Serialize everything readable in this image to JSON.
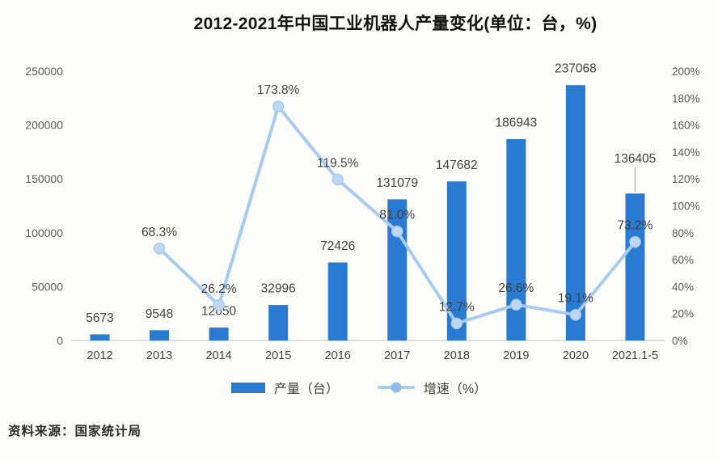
{
  "title": "2012-2021年中国工业机器人产量变化(单位：台，%)",
  "source": "资料来源：国家统计局",
  "legend": [
    {
      "label": "产量（台）",
      "type": "bar"
    },
    {
      "label": "增速（%）",
      "type": "line"
    }
  ],
  "colors": {
    "bar": "#2a7ad2",
    "line": "#a8ccf1",
    "marker_fill": "#bdd7f4",
    "legend_marker": "#8fbcec",
    "value_label": "#404040",
    "axis_label": "#595959",
    "x_label": "#3d3d3d",
    "baseline": "#d4d4d4",
    "leader_line": "#9a9a9a"
  },
  "chart_data": {
    "type": "bar",
    "subtype": "bar+line combo, dual axis",
    "title": "2012-2021年中国工业机器人产量变化(单位：台，%)",
    "categories": [
      "2012",
      "2013",
      "2014",
      "2015",
      "2016",
      "2017",
      "2018",
      "2019",
      "2020",
      "2021.1-5"
    ],
    "series": [
      {
        "name": "产量（台）",
        "type": "bar",
        "axis": "left",
        "values": [
          5673,
          9548,
          12050,
          32996,
          72426,
          131079,
          147682,
          186943,
          237068,
          136405
        ],
        "labels": [
          "5673",
          "9548",
          "12050",
          "32996",
          "72426",
          "131079",
          "147682",
          "186943",
          "237068",
          "136405"
        ]
      },
      {
        "name": "增速（%）",
        "type": "line",
        "axis": "right",
        "values": [
          null,
          68.3,
          26.2,
          173.8,
          119.5,
          81.0,
          12.7,
          26.6,
          19.1,
          73.2
        ],
        "labels": [
          null,
          "68.3%",
          "26.2%",
          "173.8%",
          "119.5%",
          "81.0%",
          "12.7%",
          "26.6%",
          "19.1%",
          "73.2%"
        ]
      }
    ],
    "left_axis": {
      "min": 0,
      "max": 250000,
      "ticks": [
        "0",
        "50000",
        "100000",
        "150000",
        "200000",
        "250000"
      ]
    },
    "right_axis": {
      "min": 0,
      "max": 200,
      "ticks": [
        "0%",
        "20%",
        "40%",
        "60%",
        "80%",
        "100%",
        "120%",
        "140%",
        "160%",
        "180%",
        "200%"
      ]
    },
    "grid": false,
    "legend_position": "bottom",
    "annotations": {
      "leader_line_category_index": 9
    }
  }
}
